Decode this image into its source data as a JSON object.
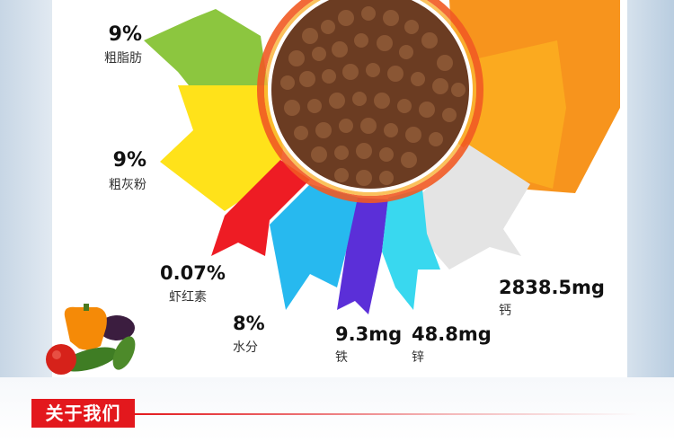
{
  "nutrients": [
    {
      "value": "9%",
      "name": "粗脂肪",
      "color": "#8cc63f"
    },
    {
      "value": "9%",
      "name": "粗灰粉",
      "color": "#ffe21a"
    },
    {
      "value": "0.07%",
      "name": "虾红素",
      "color": "#ee1c24"
    },
    {
      "value": "8%",
      "name": "水分",
      "color": "#27b9ef"
    },
    {
      "value": "9.3mg",
      "name": "铁",
      "color": "#5b2fd8"
    },
    {
      "value": "48.8mg",
      "name": "锌",
      "color": "#39d8ef"
    },
    {
      "value": "2838.5mg",
      "name": "钙",
      "color": "#e4e4e4"
    }
  ],
  "top_colors": {
    "orange": "#f7941d",
    "outer_orange": "#f9a11b",
    "inner_ring": "#f15a24"
  },
  "decor": {
    "kibble": "kibble-pellets-image",
    "vegetables": "vegetables-image"
  },
  "section": {
    "title": "关于我们",
    "color": "#e3181d"
  }
}
